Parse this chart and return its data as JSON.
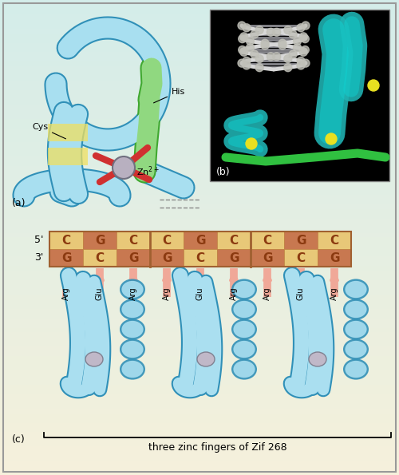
{
  "bg_top": "#f5f0d8",
  "bg_bottom": "#d0ece8",
  "border_color": "#999999",
  "panel_a_label": "(a)",
  "panel_b_label": "(b)",
  "panel_c_label": "(c)",
  "dna_top": [
    "C",
    "G",
    "C",
    "C",
    "G",
    "C",
    "C",
    "G",
    "C"
  ],
  "dna_bot": [
    "G",
    "C",
    "G",
    "G",
    "C",
    "G",
    "G",
    "C",
    "G"
  ],
  "col_C": "#e8c878",
  "col_G": "#c87850",
  "aa_labels": [
    "Arg",
    "Glu",
    "Arg",
    "Arg",
    "Glu",
    "Arg",
    "Arg",
    "Glu",
    "Arg"
  ],
  "zif_label": "three zinc fingers of Zif 268",
  "arrow_color": "#f0a898",
  "text_color": "#8b3a10",
  "tube_light": "#a8dff0",
  "tube_mid": "#70c0e0",
  "tube_dark": "#3090b8",
  "green_light": "#90d880",
  "green_dark": "#40a830",
  "zinc_color": "#b8b0c0",
  "red_stick": "#d03030"
}
